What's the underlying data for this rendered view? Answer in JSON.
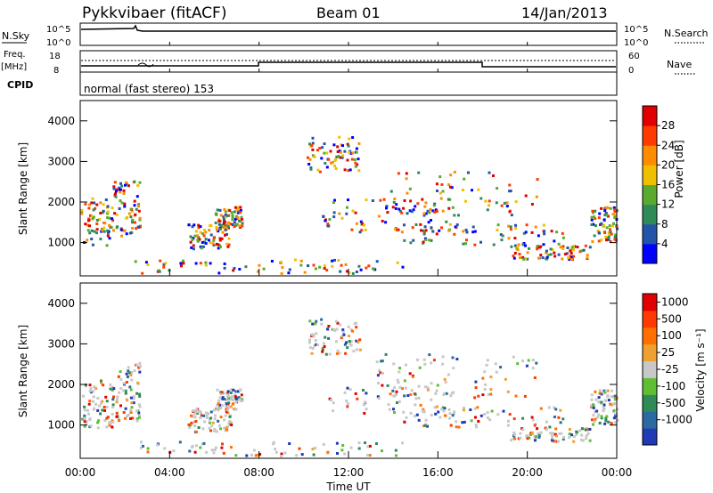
{
  "header": {
    "station": "Pykkvibaer (fitACF)",
    "beam": "Beam 01",
    "date": "14/Jan/2013"
  },
  "top_panels": {
    "nsky_label": "N.Sky",
    "nsky_ticks": [
      "10^5",
      "10^0"
    ],
    "nsearch_label": "N.Search",
    "nsearch_ticks": [
      "10^5",
      "10^0"
    ],
    "freq_label": "Freq.",
    "freq_unit": "[MHz]",
    "freq_ticks": [
      "18",
      "8"
    ],
    "nave_label": "Nave",
    "nave_ticks": [
      "60",
      "0"
    ],
    "cpid_label": "CPID",
    "cpid_text": "normal (fast stereo) 153"
  },
  "chart_data": [
    {
      "type": "heatmap",
      "name": "power",
      "ylabel": "Slant Range [km]",
      "y_ticks": [
        "4000",
        "3000",
        "2000",
        "1000"
      ],
      "ylim": [
        180,
        4500
      ],
      "colorbar_label": "Power [dB]",
      "colorbar_ticks": [
        "28",
        "24",
        "20",
        "16",
        "12",
        "8",
        "4"
      ],
      "colorbar_colors": [
        "#0000ff",
        "#2255aa",
        "#2e8b57",
        "#5aaa2e",
        "#f0c000",
        "#ff8c00",
        "#ff3b00",
        "#e00000"
      ]
    },
    {
      "type": "heatmap",
      "name": "velocity",
      "ylabel": "Slant Range [km]",
      "y_ticks": [
        "4000",
        "3000",
        "2000",
        "1000"
      ],
      "ylim": [
        180,
        4500
      ],
      "colorbar_label": "Velocity [m s⁻¹]",
      "colorbar_ticks": [
        "1000",
        "500",
        "100",
        "25",
        "-25",
        "-100",
        "-500",
        "-1000"
      ],
      "colorbar_colors": [
        "#1e3ab4",
        "#2a6aa0",
        "#2e8b57",
        "#5fbe34",
        "#c8c8c8",
        "#f0a030",
        "#ff7000",
        "#ff3a00",
        "#e00000"
      ]
    }
  ],
  "x_axis": {
    "ticks": [
      "00:00",
      "04:00",
      "08:00",
      "12:00",
      "16:00",
      "20:00",
      "00:00"
    ],
    "label": "Time UT"
  }
}
